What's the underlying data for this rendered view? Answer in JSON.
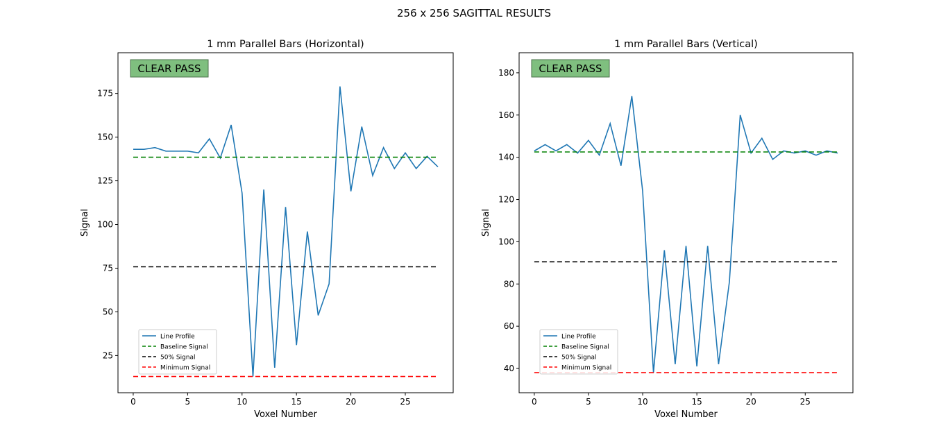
{
  "suptitle": "256 x 256 SAGITTAL RESULTS",
  "colors": {
    "line_profile": "#1f77b4",
    "baseline": "#008000",
    "fifty": "#000000",
    "minimum": "#ff0000",
    "badge_bg": "#7fbf7f",
    "badge_border": "#4a6f4a"
  },
  "chart_data": [
    {
      "type": "line",
      "title": "1 mm Parallel Bars (Horizontal)",
      "xlabel": "Voxel Number",
      "ylabel": "Signal",
      "xlim": [
        -1.4,
        29.4
      ],
      "ylim": [
        3.7,
        198.3
      ],
      "xticks": [
        0,
        5,
        10,
        15,
        20,
        25
      ],
      "yticks": [
        25,
        50,
        75,
        100,
        125,
        150,
        175
      ],
      "badge": "CLEAR PASS",
      "legend_position": "lower-left",
      "series": [
        {
          "name": "Line Profile",
          "style": "solid",
          "color_key": "line_profile",
          "x": [
            0,
            1,
            2,
            3,
            4,
            5,
            6,
            7,
            8,
            9,
            10,
            11,
            12,
            13,
            14,
            15,
            16,
            17,
            18,
            19,
            20,
            21,
            22,
            23,
            24,
            25,
            26,
            27,
            28
          ],
          "values": [
            143,
            143,
            144,
            142,
            142,
            142,
            141,
            149,
            138,
            157,
            118,
            13,
            120,
            18,
            110,
            31,
            96,
            48,
            66,
            179,
            119,
            156,
            128,
            144,
            132,
            141,
            132,
            139,
            133
          ]
        },
        {
          "name": "Baseline Signal",
          "style": "dashed",
          "color_key": "baseline",
          "x": [
            0,
            28
          ],
          "values": [
            138.5,
            138.5
          ]
        },
        {
          "name": "50% Signal",
          "style": "dashed",
          "color_key": "fifty",
          "x": [
            0,
            28
          ],
          "values": [
            75.8,
            75.8
          ]
        },
        {
          "name": "Minimum Signal",
          "style": "dashed",
          "color_key": "minimum",
          "x": [
            0,
            28
          ],
          "values": [
            13,
            13
          ]
        }
      ]
    },
    {
      "type": "line",
      "title": "1 mm Parallel Bars (Vertical)",
      "xlabel": "Voxel Number",
      "ylabel": "Signal",
      "xlim": [
        -1.4,
        29.4
      ],
      "ylim": [
        28.5,
        189.5
      ],
      "xticks": [
        0,
        5,
        10,
        15,
        20,
        25
      ],
      "yticks": [
        40,
        60,
        80,
        100,
        120,
        140,
        160,
        180
      ],
      "badge": "CLEAR PASS",
      "legend_position": "lower-left",
      "series": [
        {
          "name": "Line Profile",
          "style": "solid",
          "color_key": "line_profile",
          "x": [
            0,
            1,
            2,
            3,
            4,
            5,
            6,
            7,
            8,
            9,
            10,
            11,
            12,
            13,
            14,
            15,
            16,
            17,
            18,
            19,
            20,
            21,
            22,
            23,
            24,
            25,
            26,
            27,
            28
          ],
          "values": [
            143,
            146,
            143,
            146,
            142,
            148,
            141,
            156,
            136,
            169,
            124,
            38,
            96,
            42,
            98,
            41,
            98,
            42,
            81,
            160,
            142,
            149,
            139,
            143,
            142,
            143,
            141,
            143,
            142
          ]
        },
        {
          "name": "Baseline Signal",
          "style": "dashed",
          "color_key": "baseline",
          "x": [
            0,
            28
          ],
          "values": [
            142.5,
            142.5
          ]
        },
        {
          "name": "50% Signal",
          "style": "dashed",
          "color_key": "fifty",
          "x": [
            0,
            28
          ],
          "values": [
            90.5,
            90.5
          ]
        },
        {
          "name": "Minimum Signal",
          "style": "dashed",
          "color_key": "minimum",
          "x": [
            0,
            28
          ],
          "values": [
            38,
            38
          ]
        }
      ]
    }
  ]
}
